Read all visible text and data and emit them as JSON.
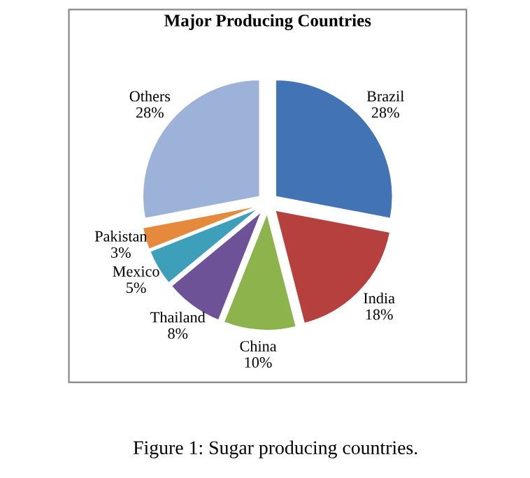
{
  "chart_data": {
    "type": "pie",
    "title": "Major Producing Countries",
    "categories": [
      "Brazil",
      "India",
      "China",
      "Thailand",
      "Mexico",
      "Pakistan",
      "Others"
    ],
    "values": [
      28,
      18,
      10,
      8,
      5,
      3,
      28
    ],
    "value_labels": [
      "28%",
      "18%",
      "10%",
      "8%",
      "5%",
      "3%",
      "28%"
    ],
    "colors": [
      "#4273b4",
      "#b5403d",
      "#8db34c",
      "#6e5297",
      "#3e9fba",
      "#e58a3c",
      "#9db2d8"
    ],
    "legend": false,
    "annotations": [
      "Figure 1: Sugar producing countries."
    ]
  }
}
